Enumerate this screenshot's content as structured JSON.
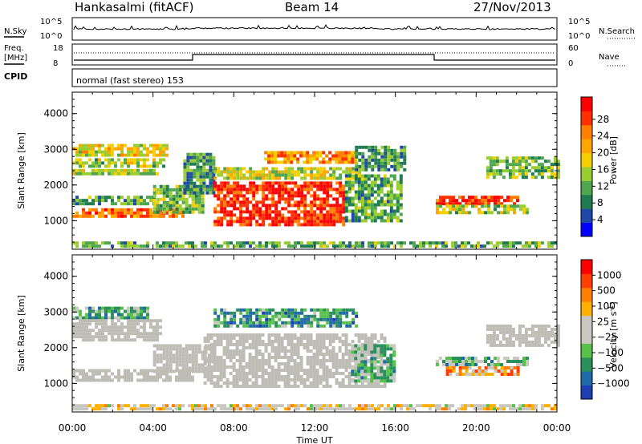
{
  "header": {
    "title": "Hankasalmi (fitACF)",
    "beam": "Beam 14",
    "date": "27/Nov/2013"
  },
  "strip_panels": {
    "nsky": {
      "label": "N.Sky",
      "ticks": [
        "10^5",
        "10^0"
      ],
      "right_ticks": [
        "10^5",
        "10^0"
      ],
      "right_label": "N.Search"
    },
    "freq": {
      "label_line1": "Freq.",
      "label_line2": "[MHz]",
      "ticks": [
        "18",
        "8"
      ],
      "right_ticks": [
        "60",
        "0"
      ],
      "right_label": "Nave"
    },
    "cpid": {
      "label": "CPID",
      "mode": "normal (fast stereo) 153"
    }
  },
  "colors": {
    "power_scale": [
      "#0000ff",
      "#1f48a8",
      "#1f7b52",
      "#4fa64f",
      "#9acd32",
      "#f5d000",
      "#ffa500",
      "#ff7f00",
      "#ff3000",
      "#ff0000"
    ],
    "velocity_scale": [
      "#1e3fb0",
      "#1f6aa8",
      "#2a8f5a",
      "#56c24a",
      "#c8c8c0",
      "#c8c8c0",
      "#ffb000",
      "#ff8000",
      "#ff4000",
      "#ff0000"
    ],
    "ground_scatter": "#bdbdb5"
  },
  "chart_data": [
    {
      "type": "heatmap",
      "name": "power",
      "ylabel": "Slant Range [km]",
      "yticks": [
        "1000",
        "2000",
        "3000",
        "4000"
      ],
      "colorbar_label": "Power [dB]",
      "colorbar_ticks": [
        "4",
        "8",
        "12",
        "16",
        "20",
        "24",
        "28"
      ],
      "ylim": [
        200,
        4600
      ],
      "xlim_hours": [
        0,
        24
      ],
      "regions": [
        {
          "t0": 0.0,
          "t1": 4.7,
          "r0": 2820,
          "r1": 3150,
          "level": 0.55
        },
        {
          "t0": 0.0,
          "t1": 4.5,
          "r0": 2550,
          "r1": 2750,
          "level": 0.45
        },
        {
          "t0": 0.0,
          "t1": 4.2,
          "r0": 2300,
          "r1": 2450,
          "level": 0.5
        },
        {
          "t0": 0.0,
          "t1": 5.5,
          "r0": 1150,
          "r1": 1350,
          "level": 0.75
        },
        {
          "t0": 0.0,
          "t1": 4.0,
          "r0": 1500,
          "r1": 1700,
          "level": 0.35
        },
        {
          "t0": 4.0,
          "t1": 6.5,
          "r0": 1250,
          "r1": 2000,
          "level": 0.4
        },
        {
          "t0": 5.5,
          "t1": 7.0,
          "r0": 1800,
          "r1": 2900,
          "level": 0.3
        },
        {
          "t0": 7.0,
          "t1": 13.5,
          "r0": 900,
          "r1": 2100,
          "level": 0.88
        },
        {
          "t0": 7.0,
          "t1": 14.2,
          "r0": 2200,
          "r1": 2500,
          "level": 0.5
        },
        {
          "t0": 9.5,
          "t1": 14.0,
          "r0": 2600,
          "r1": 2950,
          "level": 0.7
        },
        {
          "t0": 13.5,
          "t1": 16.3,
          "r0": 1000,
          "r1": 2300,
          "level": 0.35
        },
        {
          "t0": 14.0,
          "t1": 16.5,
          "r0": 2400,
          "r1": 3100,
          "level": 0.3
        },
        {
          "t0": 18.0,
          "t1": 22.0,
          "r0": 1450,
          "r1": 1700,
          "level": 0.85
        },
        {
          "t0": 18.0,
          "t1": 22.5,
          "r0": 1250,
          "r1": 1450,
          "level": 0.45
        },
        {
          "t0": 20.5,
          "t1": 24.0,
          "r0": 2200,
          "r1": 2800,
          "level": 0.4
        },
        {
          "t0": 0.0,
          "t1": 24.0,
          "r0": 250,
          "r1": 420,
          "level": 0.35
        }
      ]
    },
    {
      "type": "heatmap",
      "name": "velocity",
      "xlabel": "Time UT",
      "ylabel": "Slant Range [km]",
      "yticks": [
        "1000",
        "2000",
        "3000",
        "4000"
      ],
      "colorbar_label": "Velocity [m s",
      "colorbar_label_sup": "-1",
      "colorbar_label_end": "]",
      "colorbar_ticks": [
        "1000",
        "500",
        "100",
        "25",
        "−25",
        "−100",
        "−500",
        "−1000"
      ],
      "xticks": [
        "00:00",
        "04:00",
        "08:00",
        "12:00",
        "16:00",
        "20:00",
        "00:00"
      ],
      "ylim": [
        200,
        4600
      ],
      "xlim_hours": [
        0,
        24
      ],
      "regions": [
        {
          "t0": 0.0,
          "t1": 3.8,
          "r0": 2850,
          "r1": 3150,
          "level": 0.3
        },
        {
          "t0": 0.0,
          "t1": 4.3,
          "r0": 2200,
          "r1": 2800,
          "level": 0.5
        },
        {
          "t0": 0.0,
          "t1": 6.0,
          "r0": 1100,
          "r1": 1400,
          "level": 0.5
        },
        {
          "t0": 4.0,
          "t1": 7.0,
          "r0": 1300,
          "r1": 2100,
          "level": 0.5
        },
        {
          "t0": 6.5,
          "t1": 15.5,
          "r0": 900,
          "r1": 2400,
          "level": 0.5
        },
        {
          "t0": 7.0,
          "t1": 14.0,
          "r0": 2600,
          "r1": 3100,
          "level": 0.25
        },
        {
          "t0": 13.8,
          "t1": 16.0,
          "r0": 1100,
          "r1": 2100,
          "level": 0.35
        },
        {
          "t0": 18.0,
          "t1": 22.5,
          "r0": 1500,
          "r1": 1750,
          "level": 0.35
        },
        {
          "t0": 18.5,
          "t1": 22.0,
          "r0": 1250,
          "r1": 1480,
          "level": 0.7
        },
        {
          "t0": 20.5,
          "t1": 24.0,
          "r0": 2100,
          "r1": 2650,
          "level": 0.5
        },
        {
          "t0": 0.0,
          "t1": 24.0,
          "r0": 250,
          "r1": 420,
          "level": 0.55
        }
      ]
    }
  ]
}
